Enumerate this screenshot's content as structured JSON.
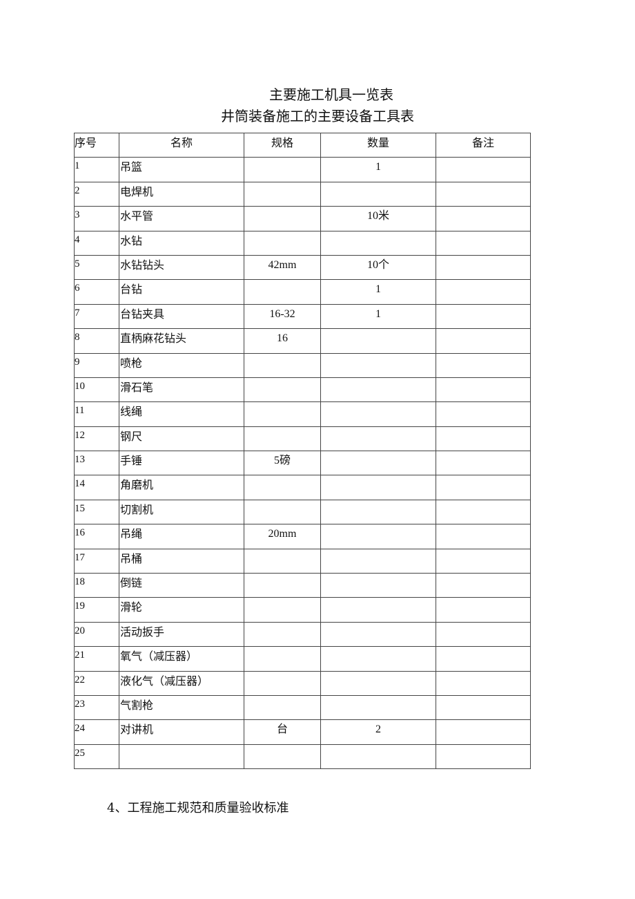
{
  "title": "主要施工机具一览表",
  "subtitle": "井筒装备施工的主要设备工具表",
  "table": {
    "headers": [
      "序号",
      "名称",
      "规格",
      "数量",
      "备注"
    ],
    "rows": [
      [
        "1",
        "吊篮",
        "",
        "1",
        ""
      ],
      [
        "2",
        "电焊机",
        "",
        "",
        ""
      ],
      [
        "3",
        "水平管",
        "",
        "10米",
        ""
      ],
      [
        "4",
        "水钻",
        "",
        "",
        ""
      ],
      [
        "5",
        "水钻钻头",
        "42mm",
        "10个",
        ""
      ],
      [
        "6",
        "台钻",
        "",
        "1",
        ""
      ],
      [
        "7",
        "台钻夹具",
        "16-32",
        "1",
        ""
      ],
      [
        "8",
        "直柄麻花钻头",
        "16",
        "",
        ""
      ],
      [
        "9",
        "喷枪",
        "",
        "",
        ""
      ],
      [
        "10",
        "滑石笔",
        "",
        "",
        ""
      ],
      [
        "11",
        "线绳",
        "",
        "",
        ""
      ],
      [
        "12",
        "钢尺",
        "",
        "",
        ""
      ],
      [
        "13",
        "手锤",
        "5磅",
        "",
        ""
      ],
      [
        "14",
        "角磨机",
        "",
        "",
        ""
      ],
      [
        "15",
        "切割机",
        "",
        "",
        ""
      ],
      [
        "16",
        "吊绳",
        "20mm",
        "",
        ""
      ],
      [
        "17",
        "吊桶",
        "",
        "",
        ""
      ],
      [
        "18",
        "倒链",
        "",
        "",
        ""
      ],
      [
        "19",
        "滑轮",
        "",
        "",
        ""
      ],
      [
        "20",
        "活动扳手",
        "",
        "",
        ""
      ],
      [
        "21",
        "氧气（减压器）",
        "",
        "",
        ""
      ],
      [
        "22",
        "液化气（减压器）",
        "",
        "",
        ""
      ],
      [
        "23",
        "气割枪",
        "",
        "",
        ""
      ],
      [
        "24",
        "对讲机",
        "台",
        "2",
        ""
      ],
      [
        "25",
        "",
        "",
        "",
        ""
      ]
    ]
  },
  "footer": "4、工程施工规范和质量验收标准"
}
